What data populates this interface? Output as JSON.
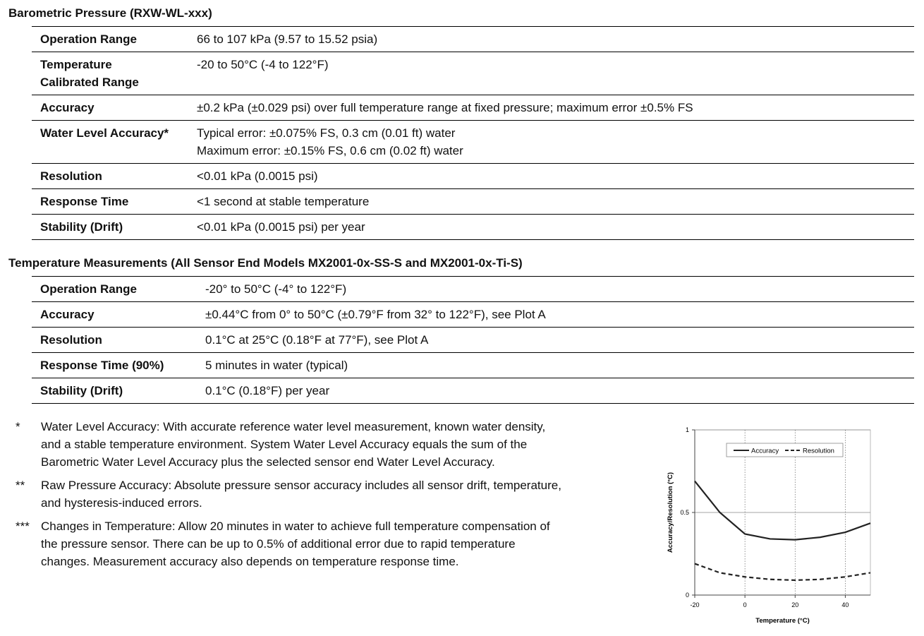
{
  "sections": [
    {
      "title": "Barometric Pressure (RXW-WL-xxx)",
      "rows": [
        [
          [
            "Operation Range"
          ],
          [
            "66 to 107 kPa (9.57 to 15.52 psia)"
          ]
        ],
        [
          [
            "Temperature",
            "Calibrated Range"
          ],
          [
            "-20 to 50°C (-4 to 122°F)"
          ]
        ],
        [
          [
            "Accuracy"
          ],
          [
            "±0.2 kPa (±0.029 psi) over full temperature range at fixed pressure; maximum error ±0.5% FS"
          ]
        ],
        [
          [
            "Water Level Accuracy*"
          ],
          [
            "Typical error: ±0.075% FS, 0.3 cm (0.01 ft) water",
            "Maximum error: ±0.15% FS, 0.6 cm (0.02 ft) water"
          ]
        ],
        [
          [
            "Resolution"
          ],
          [
            "<0.01 kPa (0.0015 psi)"
          ]
        ],
        [
          [
            "Response Time"
          ],
          [
            "<1 second at stable temperature"
          ]
        ],
        [
          [
            "Stability (Drift)"
          ],
          [
            "<0.01 kPa (0.0015 psi) per year"
          ]
        ]
      ]
    },
    {
      "title": "Temperature Measurements (All Sensor End Models MX2001-0x-SS-S and MX2001-0x-Ti-S)",
      "rows": [
        [
          [
            "Operation Range"
          ],
          [
            "-20° to 50°C (-4° to 122°F)"
          ]
        ],
        [
          [
            "Accuracy"
          ],
          [
            "±0.44°C from 0° to 50°C (±0.79°F from 32° to 122°F), see Plot A"
          ]
        ],
        [
          [
            "Resolution"
          ],
          [
            "0.1°C at 25°C (0.18°F at 77°F), see Plot A"
          ]
        ],
        [
          [
            "Response Time (90%)"
          ],
          [
            "5 minutes in water (typical)"
          ]
        ],
        [
          [
            "Stability (Drift)"
          ],
          [
            "0.1°C (0.18°F) per year"
          ]
        ]
      ]
    }
  ],
  "footnotes": [
    {
      "mark": "*",
      "lines": [
        "Water Level Accuracy: With accurate reference water level measurement, known water density,",
        "and a stable temperature environment. System Water Level Accuracy equals the sum of the",
        "Barometric Water Level Accuracy plus the selected sensor end Water Level Accuracy."
      ]
    },
    {
      "mark": "**",
      "lines": [
        "Raw Pressure Accuracy: Absolute pressure sensor accuracy includes all sensor drift, temperature,",
        "and hysteresis-induced errors."
      ]
    },
    {
      "mark": "***",
      "lines": [
        "Changes in Temperature: Allow 20 minutes in water to achieve full temperature compensation of",
        "the pressure sensor. There can be up to 0.5% of additional error due to rapid temperature",
        "changes. Measurement accuracy also depends on temperature response time."
      ]
    }
  ],
  "chart_data": {
    "type": "line",
    "x_label": "Temperature (°C)",
    "y_label": "Accuracy/Resolution (°C)",
    "x": [
      -20,
      -10,
      0,
      10,
      20,
      30,
      40,
      50
    ],
    "series": [
      {
        "name": "Accuracy",
        "color": "#222222",
        "dash": false,
        "values": [
          0.69,
          0.5,
          0.37,
          0.34,
          0.335,
          0.35,
          0.38,
          0.435
        ]
      },
      {
        "name": "Resolution",
        "color": "#222222",
        "dash": true,
        "values": [
          0.19,
          0.135,
          0.11,
          0.095,
          0.09,
          0.095,
          0.11,
          0.135
        ]
      }
    ],
    "xlim": [
      -20,
      50
    ],
    "ylim": [
      0,
      1
    ],
    "xticks": [
      -20,
      0,
      20,
      40
    ],
    "yticks": [
      0,
      0.5,
      1
    ],
    "grid": true,
    "legend": "top"
  }
}
